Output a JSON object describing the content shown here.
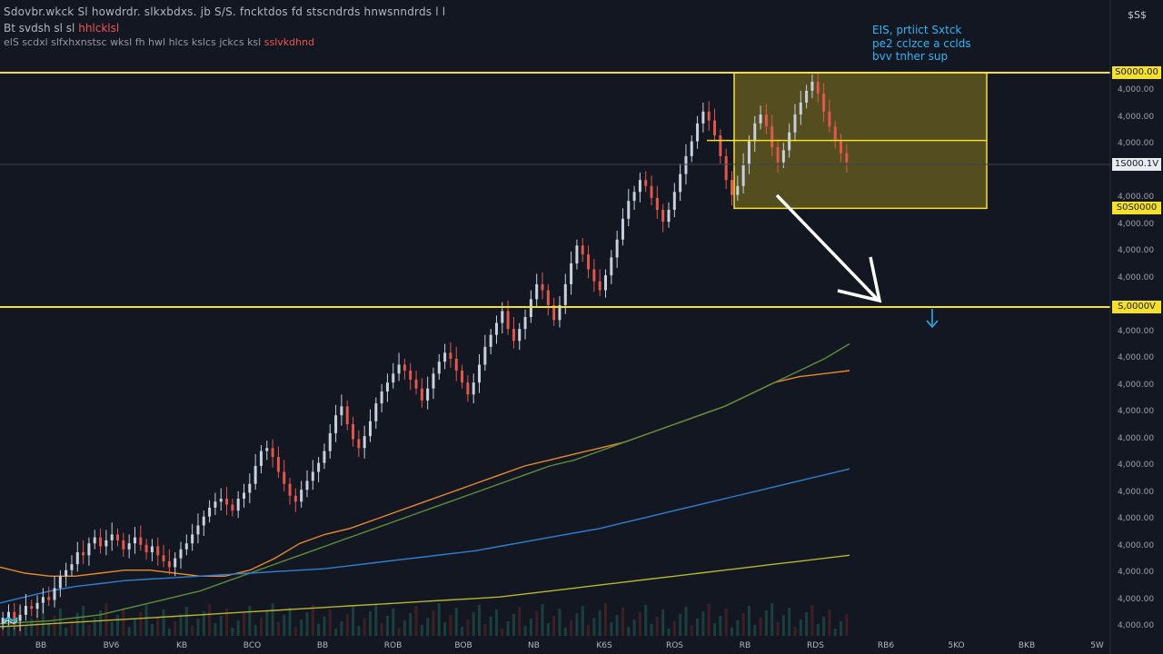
{
  "header": {
    "line1": "Sdovbr.wkck  Sl  howdrdr.  slkxbdxs.  jb  S/S.  fncktdos  fd  stscndrds  hnwsnndrds  l  l",
    "line2": "Bt  svdsh   sl  sl",
    "line2_highlight": "hhlcklsl",
    "line3": "elS  scdxl  slfxhxnstsc  wksl  fh  hwl  hlcs  kslcs  jckcs  ksl",
    "line3_highlight": "sslvkdhnd"
  },
  "top_right_label": "$S$",
  "annotation": {
    "line1": "EIS, prtiict  Sxtck",
    "line2": "pe2  cclzce  a  cclds",
    "line3": "bvv  tnher  sup"
  },
  "price_tags": {
    "resistance": "S0000.00",
    "last": "1S000.1V",
    "box_bottom": "S0S0000",
    "support": "S,0000V"
  },
  "y_axis_ticks": [
    "4,000.00",
    "4,000.00",
    "4,000.00",
    "4,000.00",
    "4,000.00",
    "4,000.00",
    "4,000.00",
    "4,000.00",
    "4,000.00",
    "4,000.00",
    "4,000.00",
    "4,000.00",
    "4,000.00",
    "4,000.00",
    "4,000.00",
    "4,000.00",
    "4,000.00",
    "4,000.00",
    "4,000.00",
    "4,000.00",
    "4,000.00"
  ],
  "x_axis_ticks": [
    "BB",
    "BV6",
    "KB",
    "BCO",
    "BB",
    "ROB",
    "BOB",
    "NB",
    "K6S",
    "ROS",
    "RB",
    "RDS",
    "RB6",
    "5KO",
    "BKB",
    "5W"
  ],
  "colors": {
    "background": "#131722",
    "bull_candle": "#c7d0dd",
    "bear_candle": "#e2574c",
    "resistance_line": "#f5e12a",
    "support_line": "#f5e12a",
    "zone_fill": "#8a7a1e",
    "ma_fast": "#e8892a",
    "ma_mid": "#5c8f3a",
    "ma_slow": "#2f7fd1",
    "ma_long": "#b8b62a",
    "arrow": "#ffffff",
    "down_marker": "#29b6f6"
  },
  "chart_data": {
    "type": "candlestick",
    "title": "",
    "xlabel": "",
    "ylabel": "",
    "ylim": [
      0,
      100
    ],
    "candles_close": [
      6,
      10,
      4,
      8,
      14,
      12,
      16,
      20,
      18,
      26,
      34,
      38,
      42,
      50,
      48,
      56,
      60,
      54,
      58,
      62,
      58,
      52,
      56,
      60,
      55,
      50,
      54,
      48,
      44,
      40,
      46,
      52,
      56,
      62,
      68,
      74,
      80,
      84,
      86,
      82,
      78,
      86,
      90,
      96,
      108,
      118,
      120,
      114,
      104,
      96,
      88,
      84,
      92,
      98,
      104,
      110,
      118,
      130,
      142,
      148,
      136,
      126,
      120,
      128,
      138,
      150,
      158,
      164,
      170,
      176,
      172,
      166,
      160,
      152,
      160,
      170,
      178,
      184,
      180,
      172,
      164,
      156,
      164,
      176,
      188,
      196,
      204,
      212,
      200,
      192,
      200,
      208,
      220,
      230,
      226,
      216,
      206,
      216,
      230,
      244,
      256,
      250,
      240,
      232,
      226,
      236,
      248,
      260,
      274,
      286,
      292,
      300,
      296,
      288,
      280,
      272,
      280,
      292,
      304,
      316,
      326,
      338,
      346,
      340,
      330,
      316,
      300,
      290,
      296,
      310,
      326,
      338,
      344,
      336,
      322,
      312,
      320,
      332,
      344,
      352,
      360,
      366,
      358,
      346,
      336,
      326,
      318,
      312
    ]
  },
  "levels": {
    "resistance": 100,
    "support": 62,
    "zone_top": 100,
    "zone_bottom": 78,
    "zone_mid": 89
  },
  "moving_averages": {
    "fast": [
      40,
      36,
      34,
      34,
      36,
      38,
      38,
      36,
      34,
      34,
      38,
      46,
      56,
      62,
      66,
      72,
      78,
      84,
      90,
      96,
      102,
      108,
      112,
      116,
      120,
      124,
      130,
      136,
      142,
      148,
      156,
      164,
      168,
      170,
      172
    ],
    "mid": [
      2,
      3,
      4,
      6,
      8,
      12,
      16,
      20,
      24,
      30,
      36,
      42,
      48,
      54,
      60,
      66,
      72,
      78,
      84,
      90,
      96,
      102,
      108,
      112,
      118,
      124,
      130,
      136,
      142,
      148,
      156,
      164,
      172,
      180,
      190
    ],
    "slow": [
      16,
      20,
      24,
      27,
      29,
      31,
      32,
      33,
      34,
      35,
      36,
      37,
      38,
      39,
      41,
      43,
      45,
      47,
      49,
      51,
      54,
      57,
      60,
      63,
      66,
      70,
      74,
      78,
      82,
      86,
      90,
      94,
      98,
      102,
      106
    ],
    "long": [
      0,
      1,
      2,
      3,
      4,
      5,
      6,
      7,
      8,
      9,
      10,
      11,
      12,
      13,
      14,
      15,
      16,
      17,
      18,
      19,
      20,
      22,
      24,
      26,
      28,
      30,
      32,
      34,
      36,
      38,
      40,
      42,
      44,
      46,
      48
    ]
  }
}
